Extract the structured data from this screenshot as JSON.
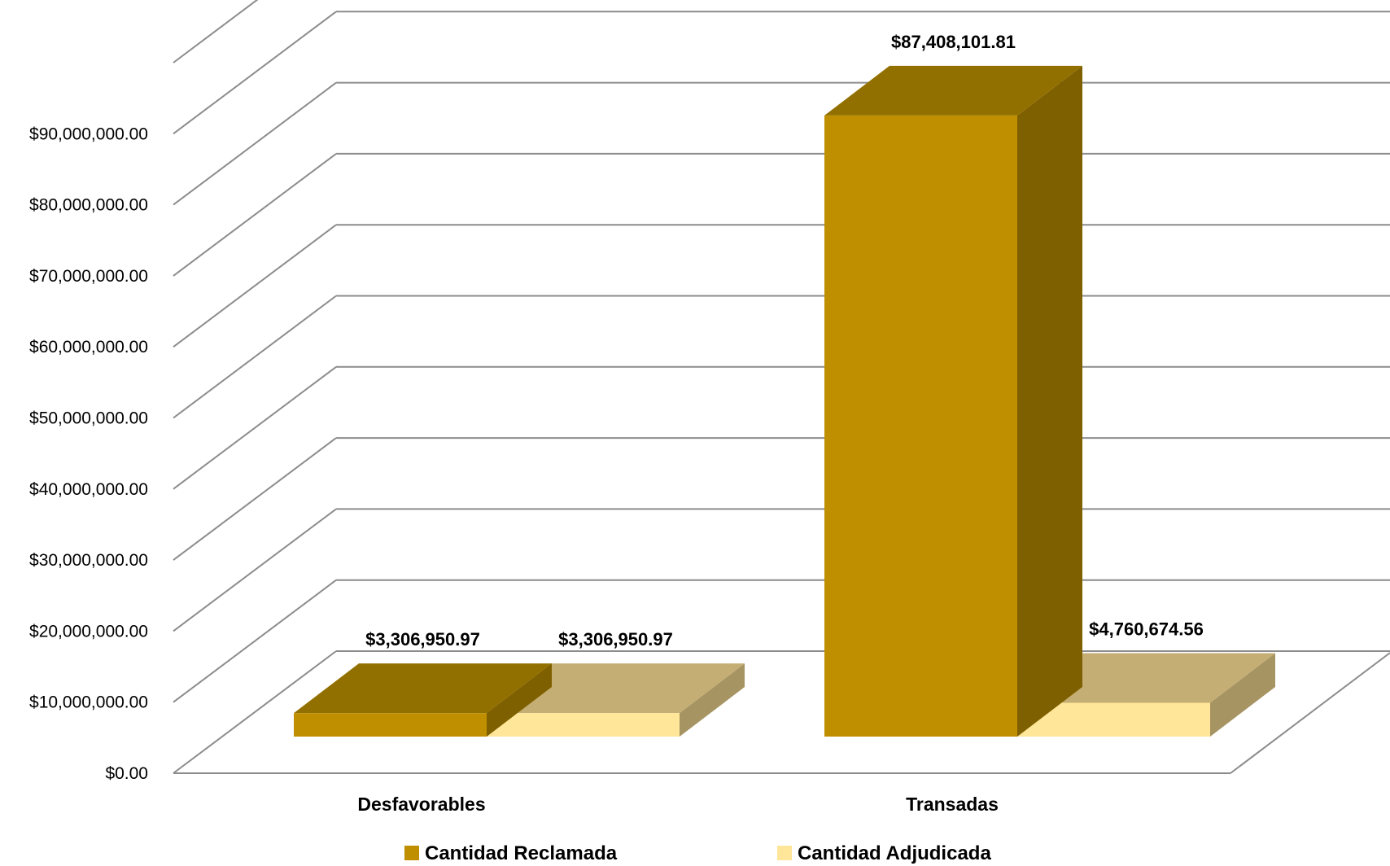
{
  "chart_data": {
    "type": "bar",
    "title": "",
    "xlabel": "",
    "ylabel": "",
    "categories": [
      "Desfavorables",
      "Transadas"
    ],
    "series": [
      {
        "name": "Cantidad Reclamada",
        "values": [
          3306950.97,
          87408101.81
        ],
        "labels": [
          "$3,306,950.97",
          "$87,408,101.81"
        ],
        "color": "#BF8F00"
      },
      {
        "name": "Cantidad Adjudicada",
        "values": [
          3306950.97,
          4760674.56
        ],
        "labels": [
          "$3,306,950.97",
          "$4,760,674.56"
        ],
        "color": "#FFE699"
      }
    ],
    "ylim": [
      0,
      100000000
    ],
    "yticks": [
      0,
      10000000,
      20000000,
      30000000,
      40000000,
      50000000,
      60000000,
      70000000,
      80000000,
      90000000
    ],
    "ytick_labels": [
      "$0.00",
      "$10,000,000.00",
      "$20,000,000.00",
      "$30,000,000.00",
      "$40,000,000.00",
      "$50,000,000.00",
      "$60,000,000.00",
      "$70,000,000.00",
      "$80,000,000.00",
      "$90,000,000.00"
    ],
    "grid": true,
    "three_d": true,
    "legend": "bottom",
    "colors": {
      "grid": "#8C8C8C",
      "reclamada_top": "#927000",
      "reclamada_side": "#7F6000",
      "adjudicada_top": "#C4AE73",
      "adjudicada_side": "#A69463"
    }
  }
}
